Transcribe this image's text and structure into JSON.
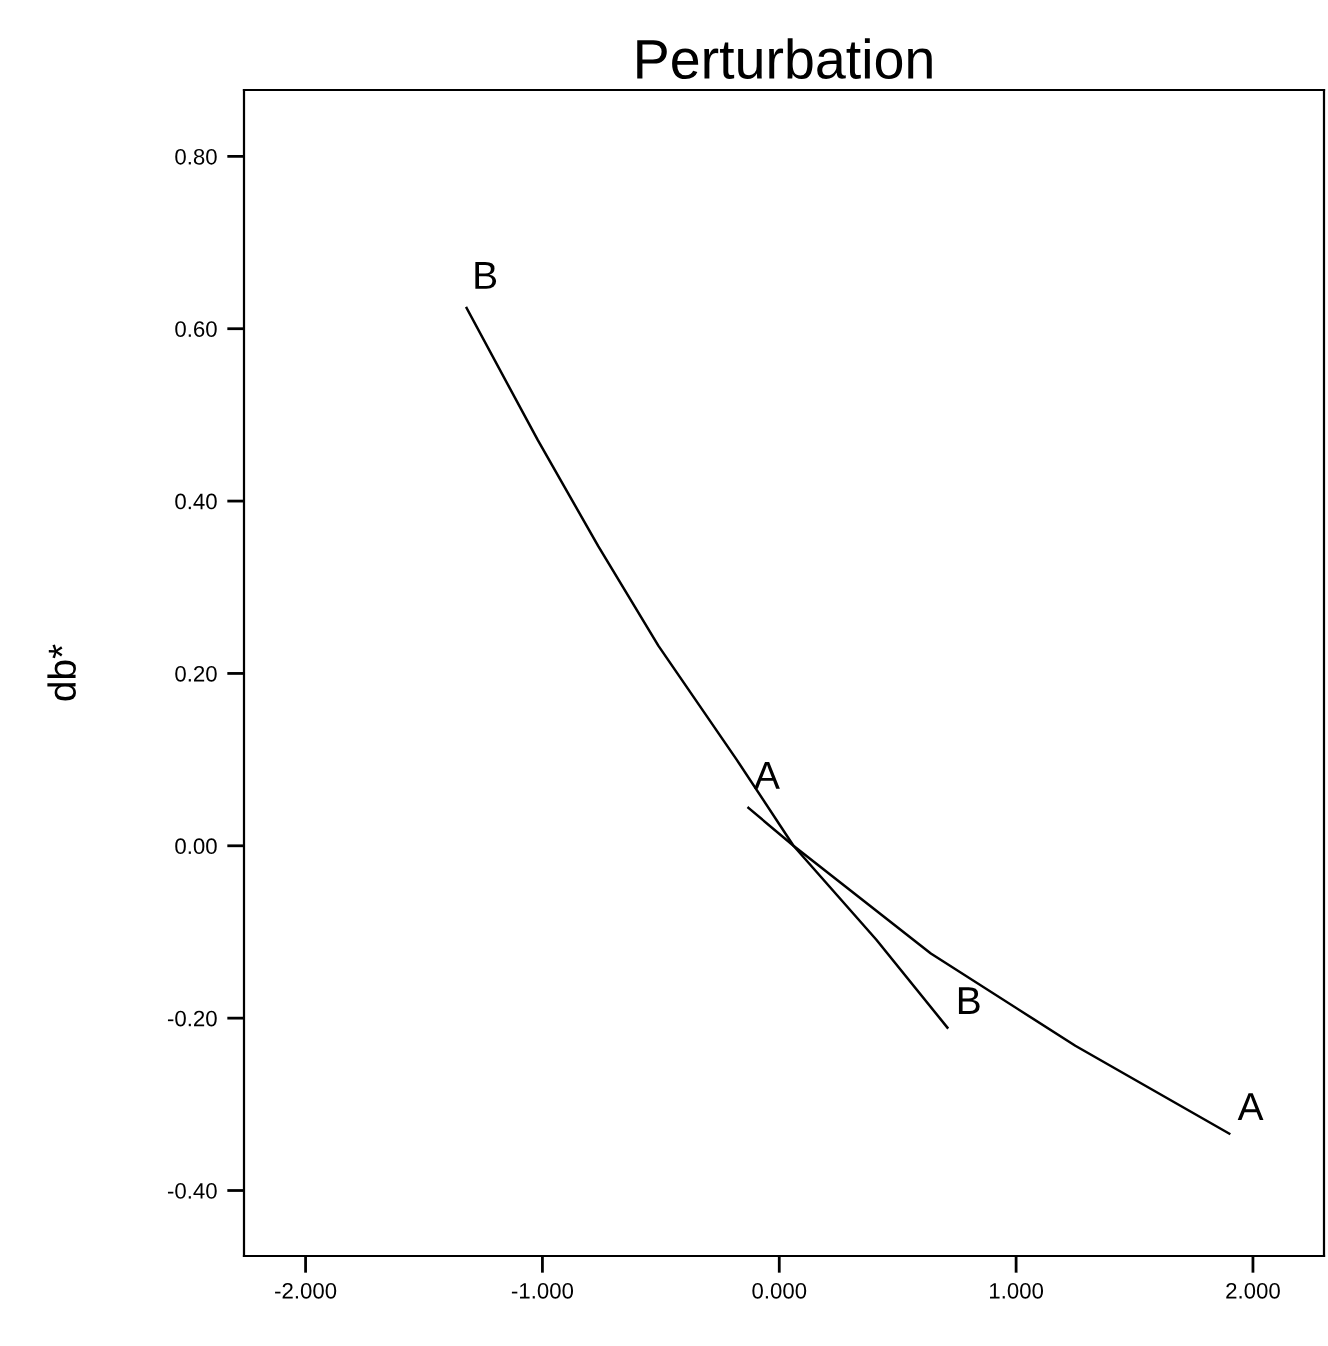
{
  "chart_data": {
    "type": "line",
    "title": "Perturbation",
    "ylabel": "db*",
    "series": [
      {
        "name": "A",
        "color": "#000000",
        "x": [
          -0.13,
          0.06,
          0.64,
          1.25,
          1.9
        ],
        "values": [
          0.044,
          0.0,
          -0.125,
          -0.232,
          -0.334
        ]
      },
      {
        "name": "B",
        "color": "#000000",
        "x": [
          -1.32,
          -1.02,
          -0.765,
          -0.51,
          -0.18,
          0.06,
          0.41,
          0.71
        ],
        "values": [
          0.624,
          0.471,
          0.348,
          0.232,
          0.1,
          0.0,
          -0.109,
          -0.211
        ]
      }
    ],
    "xlim": [
      -2.26,
      2.3
    ],
    "ylim": [
      -0.476,
      0.877
    ],
    "xticks": [
      {
        "value": -2,
        "label": "-2.000"
      },
      {
        "value": -1,
        "label": "-1.000"
      },
      {
        "value": 0,
        "label": "0.000"
      },
      {
        "value": 1,
        "label": "1.000"
      },
      {
        "value": 2,
        "label": "2.000"
      }
    ],
    "yticks": [
      {
        "value": -0.4,
        "label": "-0.40"
      },
      {
        "value": -0.2,
        "label": "-0.20"
      },
      {
        "value": 0,
        "label": "0.00"
      },
      {
        "value": 0.2,
        "label": "0.20"
      },
      {
        "value": 0.4,
        "label": "0.40"
      },
      {
        "value": 0.6,
        "label": "0.60"
      },
      {
        "value": 0.8,
        "label": "0.80"
      }
    ],
    "grid": false,
    "legend": false,
    "marker": "none",
    "line_style": "solid"
  }
}
